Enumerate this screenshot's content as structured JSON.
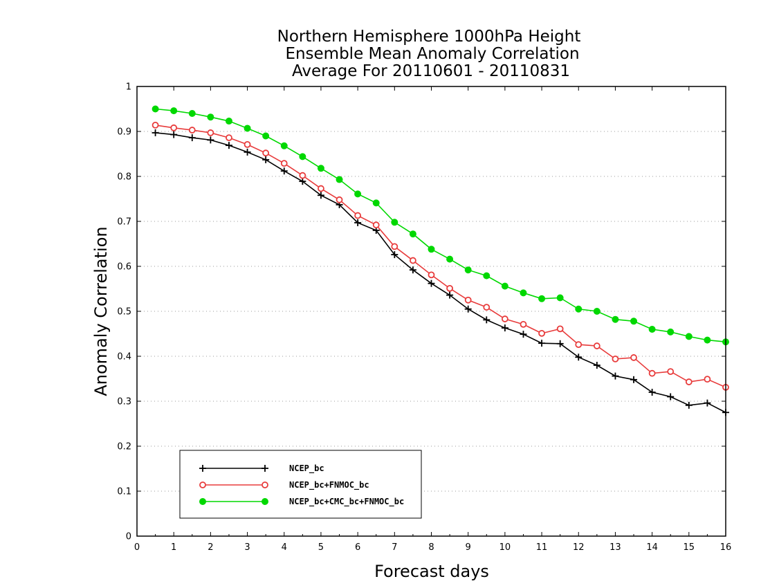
{
  "chart_data": {
    "type": "line",
    "title_lines": [
      "Northern Hemisphere 1000hPa Height",
      "Ensemble Mean Anomaly Correlation",
      "Average For 20110601 - 20110831"
    ],
    "xlabel": "Forecast days",
    "ylabel": "Anomaly Correlation",
    "xlim": [
      0,
      16
    ],
    "ylim": [
      0,
      1
    ],
    "x_ticks": [
      "0",
      "1",
      "2",
      "3",
      "4",
      "5",
      "6",
      "7",
      "8",
      "9",
      "10",
      "11",
      "12",
      "13",
      "14",
      "15",
      "16"
    ],
    "y_ticks": [
      "0",
      "0.1",
      "0.2",
      "0.3",
      "0.4",
      "0.5",
      "0.6",
      "0.7",
      "0.8",
      "0.9",
      "1"
    ],
    "grid": "horizontal-dotted",
    "legend_position": "bottom-left",
    "x": [
      0.5,
      1,
      1.5,
      2,
      2.5,
      3,
      3.5,
      4,
      4.5,
      5,
      5.5,
      6,
      6.5,
      7,
      7.5,
      8,
      8.5,
      9,
      9.5,
      10,
      10.5,
      11,
      11.5,
      12,
      12.5,
      13,
      13.5,
      14,
      14.5,
      15,
      15.5,
      16
    ],
    "series": [
      {
        "name": "NCEP_bc",
        "color": "#000000",
        "marker": "plus",
        "values": [
          0.897,
          0.893,
          0.886,
          0.881,
          0.869,
          0.854,
          0.837,
          0.812,
          0.789,
          0.758,
          0.737,
          0.697,
          0.68,
          0.626,
          0.592,
          0.562,
          0.536,
          0.505,
          0.481,
          0.463,
          0.449,
          0.429,
          0.428,
          0.398,
          0.38,
          0.356,
          0.348,
          0.32,
          0.31,
          0.291,
          0.296,
          0.275
        ]
      },
      {
        "name": "NCEP_bc+FNMOC_bc",
        "color": "#e83c3c",
        "marker": "open-circle",
        "values": [
          0.914,
          0.908,
          0.903,
          0.897,
          0.886,
          0.871,
          0.852,
          0.829,
          0.802,
          0.773,
          0.748,
          0.713,
          0.692,
          0.644,
          0.613,
          0.581,
          0.551,
          0.525,
          0.509,
          0.483,
          0.471,
          0.451,
          0.461,
          0.426,
          0.423,
          0.394,
          0.397,
          0.362,
          0.366,
          0.343,
          0.349,
          0.331
        ]
      },
      {
        "name": "NCEP_bc+CMC_bc+FNMOC_bc",
        "color": "#00d800",
        "marker": "filled-circle",
        "values": [
          0.95,
          0.946,
          0.94,
          0.932,
          0.923,
          0.907,
          0.89,
          0.868,
          0.844,
          0.818,
          0.793,
          0.761,
          0.741,
          0.698,
          0.672,
          0.638,
          0.616,
          0.592,
          0.579,
          0.556,
          0.541,
          0.528,
          0.53,
          0.505,
          0.5,
          0.482,
          0.478,
          0.46,
          0.454,
          0.444,
          0.436,
          0.432
        ]
      }
    ]
  }
}
